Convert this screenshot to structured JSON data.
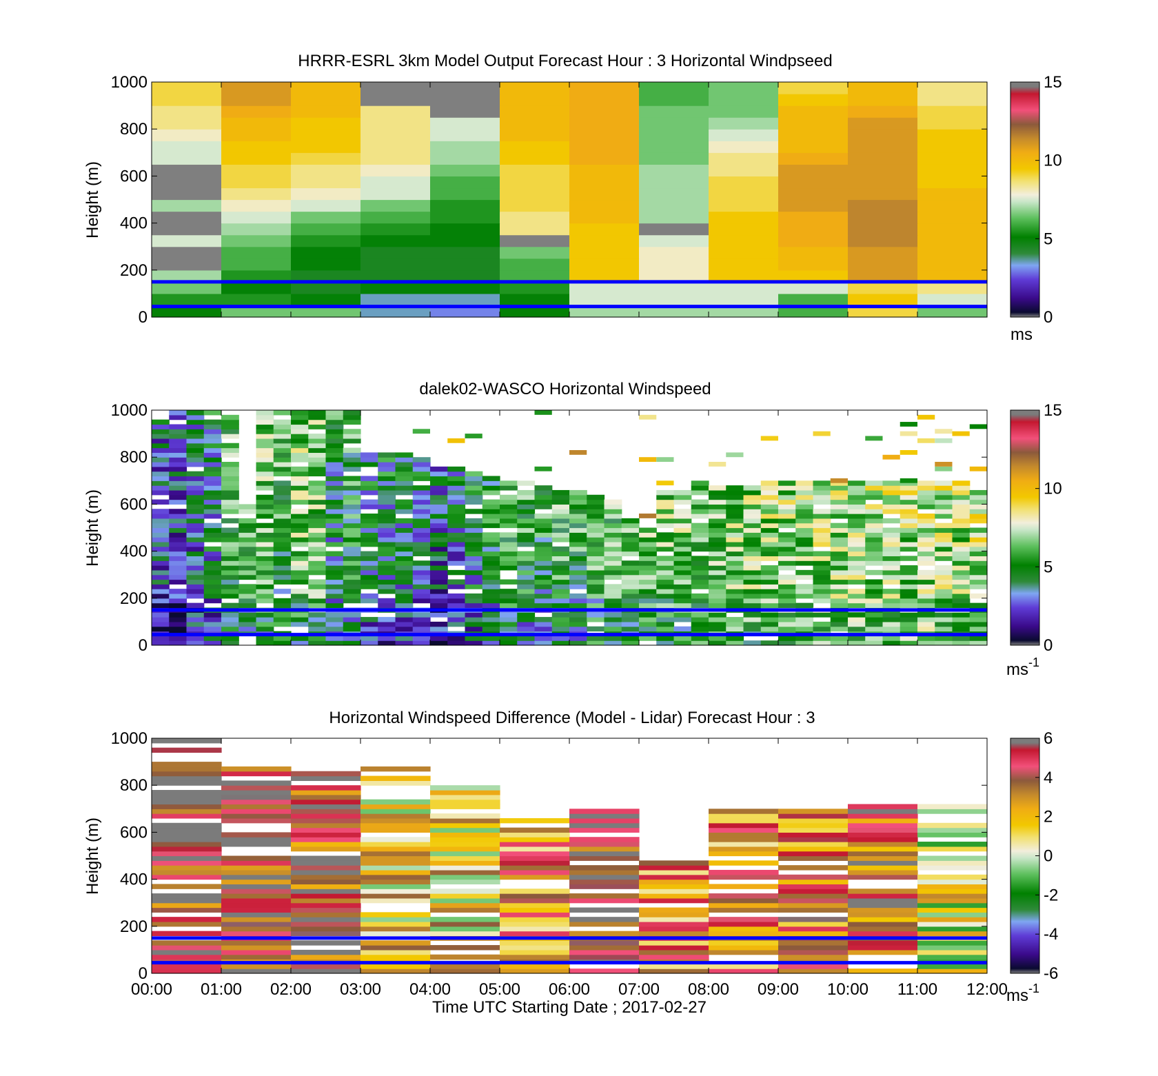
{
  "figure": {
    "xlabel": "Time UTC  Starting Date ; 2017-02-27",
    "time_ticks": [
      "00:00",
      "01:00",
      "02:00",
      "03:00",
      "04:00",
      "05:00",
      "06:00",
      "07:00",
      "08:00",
      "09:00",
      "10:00",
      "11:00",
      "12:00"
    ],
    "reference_lines_m": [
      150,
      45
    ],
    "reference_line_color": "#0000ff"
  },
  "chart_data": [
    {
      "type": "heatmap",
      "title": "HRRR-ESRL 3km Model Output   Forecast Hour : 3 Horizontal Windpseed",
      "ylabel": "Height (m)",
      "ylim": [
        0,
        1000
      ],
      "yticks": [
        "0",
        "200",
        "400",
        "600",
        "800",
        "1000"
      ],
      "xlim_hours": [
        0,
        12
      ],
      "colorbar": {
        "min": 0,
        "max": 15,
        "ticks": [
          "0",
          "5",
          "10",
          "15"
        ],
        "unit": "ms",
        "unit_sup": "",
        "palette": "speed"
      },
      "grid": {
        "x_hours": [
          0.5,
          1.5,
          2.5,
          3.5,
          4.5,
          5.5,
          6.5,
          7.5,
          8.5,
          9.5,
          10.5,
          11.5
        ],
        "heights_m": [
          25,
          75,
          125,
          175,
          225,
          275,
          325,
          375,
          425,
          475,
          525,
          575,
          625,
          675,
          725,
          775,
          825,
          875,
          925,
          975
        ],
        "values_ms": [
          [
            5.0,
            6.5,
            6.5,
            3.5,
            3.0,
            5.0,
            7.0,
            7.0,
            7.0,
            6.0,
            9.0,
            6.5
          ],
          [
            5.5,
            5.5,
            5.0,
            3.5,
            3.5,
            5.0,
            7.5,
            7.5,
            7.5,
            6.0,
            9.5,
            7.5
          ],
          [
            6.5,
            5.0,
            4.5,
            5.0,
            5.0,
            5.5,
            7.5,
            7.5,
            7.5,
            7.5,
            9.0,
            8.5
          ],
          [
            7.0,
            5.5,
            4.5,
            4.5,
            4.5,
            6.0,
            9.5,
            8.0,
            9.5,
            9.5,
            11.0,
            10.0
          ],
          [
            15.5,
            6.0,
            5.0,
            4.5,
            4.5,
            6.0,
            9.5,
            8.0,
            9.5,
            10.0,
            11.0,
            10.0
          ],
          [
            15.5,
            6.0,
            5.0,
            4.5,
            4.5,
            6.5,
            9.5,
            8.0,
            9.5,
            10.0,
            11.0,
            10.0
          ],
          [
            7.5,
            6.5,
            5.5,
            5.0,
            5.0,
            15.5,
            9.5,
            7.5,
            9.5,
            10.5,
            11.5,
            10.0
          ],
          [
            15.5,
            7.0,
            6.0,
            5.5,
            5.0,
            8.5,
            9.5,
            15.5,
            9.5,
            10.5,
            11.5,
            10.0
          ],
          [
            15.5,
            7.5,
            6.5,
            6.0,
            5.5,
            8.5,
            10.0,
            7.0,
            9.5,
            10.5,
            11.5,
            10.0
          ],
          [
            7.0,
            8.0,
            7.5,
            6.5,
            5.5,
            9.0,
            10.0,
            7.0,
            9.0,
            11.0,
            11.5,
            10.0
          ],
          [
            15.5,
            8.5,
            8.0,
            7.5,
            6.0,
            9.0,
            10.0,
            7.0,
            9.0,
            11.0,
            11.0,
            10.0
          ],
          [
            15.5,
            9.0,
            8.5,
            7.5,
            6.0,
            9.0,
            10.0,
            7.0,
            9.0,
            11.0,
            11.0,
            9.5
          ],
          [
            15.5,
            9.0,
            8.5,
            8.0,
            6.5,
            9.0,
            10.0,
            7.0,
            8.5,
            11.0,
            11.0,
            9.5
          ],
          [
            7.5,
            9.5,
            9.0,
            8.5,
            7.0,
            9.5,
            10.5,
            6.5,
            8.5,
            10.5,
            11.0,
            9.5
          ],
          [
            7.5,
            9.5,
            9.5,
            8.5,
            7.0,
            9.5,
            10.5,
            6.5,
            8.0,
            10.0,
            11.0,
            9.5
          ],
          [
            8.0,
            10.0,
            9.5,
            8.5,
            7.5,
            10.0,
            10.5,
            6.5,
            7.5,
            10.0,
            11.0,
            9.5
          ],
          [
            8.5,
            10.0,
            9.5,
            8.5,
            7.5,
            10.0,
            10.5,
            6.5,
            7.0,
            10.0,
            11.0,
            9.0
          ],
          [
            8.5,
            10.5,
            10.0,
            8.5,
            15.5,
            10.0,
            10.5,
            6.5,
            6.5,
            10.0,
            10.5,
            9.0
          ],
          [
            9.0,
            11.0,
            10.0,
            15.5,
            15.5,
            10.0,
            10.5,
            6.0,
            6.5,
            9.5,
            10.0,
            8.5
          ],
          [
            9.0,
            11.0,
            10.0,
            15.5,
            15.5,
            10.0,
            10.5,
            6.0,
            6.5,
            9.0,
            10.0,
            8.5
          ]
        ]
      }
    },
    {
      "type": "heatmap",
      "title": "dalek02-WASCO  Horizontal Windspeed",
      "ylabel": "Height (m)",
      "ylim": [
        0,
        1000
      ],
      "yticks": [
        "0",
        "200",
        "400",
        "600",
        "800",
        "1000"
      ],
      "xlim_hours": [
        0,
        12
      ],
      "colorbar": {
        "min": 0,
        "max": 15,
        "ticks": [
          "0",
          "5",
          "10",
          "15"
        ],
        "unit": "ms",
        "unit_sup": "-1",
        "palette": "speed"
      },
      "profiles": {
        "time_step_hours": 0.25,
        "top_height_m": [
          960,
          1000,
          1000,
          1000,
          1000,
          600,
          1000,
          1000,
          1000,
          1000,
          1000,
          1000,
          840,
          830,
          820,
          800,
          780,
          760,
          740,
          720,
          700,
          690,
          680,
          660,
          650,
          640,
          620,
          560,
          500,
          660,
          660,
          690,
          680,
          680,
          680,
          690,
          690,
          690,
          690,
          690,
          690,
          690,
          690,
          690,
          700,
          700,
          690,
          660
        ],
        "speed_ms": [
          2.0,
          1.8,
          2.6,
          3.2,
          4.6,
          5.0,
          5.2,
          4.8,
          5.6,
          5.4,
          3.6,
          4.2,
          3.4,
          3.2,
          3.6,
          2.8,
          2.4,
          2.8,
          3.6,
          4.2,
          4.8,
          4.6,
          4.4,
          5.0,
          4.8,
          5.2,
          5.0,
          5.4,
          5.4,
          5.8,
          5.6,
          5.8,
          5.8,
          6.0,
          6.0,
          6.2,
          6.2,
          6.0,
          6.4,
          6.4,
          6.4,
          6.6,
          6.6,
          6.4,
          6.8,
          6.6,
          6.4,
          6.8
        ]
      }
    },
    {
      "type": "heatmap",
      "title": "Horizontal Windspeed Difference (Model - Lidar) Forecast Hour : 3",
      "ylabel": "Height (m)",
      "ylim": [
        0,
        1000
      ],
      "yticks": [
        "0",
        "200",
        "400",
        "600",
        "800",
        "1000"
      ],
      "xlim_hours": [
        0,
        12
      ],
      "colorbar": {
        "min": -6,
        "max": 6,
        "ticks": [
          "-6",
          "-4",
          "-2",
          "0",
          "2",
          "4",
          "6"
        ],
        "unit": "ms",
        "unit_sup": "-1",
        "palette": "diff"
      },
      "hourly": {
        "top_height_m": [
          1000,
          870,
          870,
          870,
          790,
          650,
          700,
          470,
          700,
          690,
          720,
          720
        ],
        "mean_diff_ms": [
          5.0,
          5.0,
          4.5,
          1.5,
          1.5,
          3.0,
          4.5,
          3.0,
          3.0,
          3.5,
          4.0,
          1.0
        ]
      }
    }
  ]
}
